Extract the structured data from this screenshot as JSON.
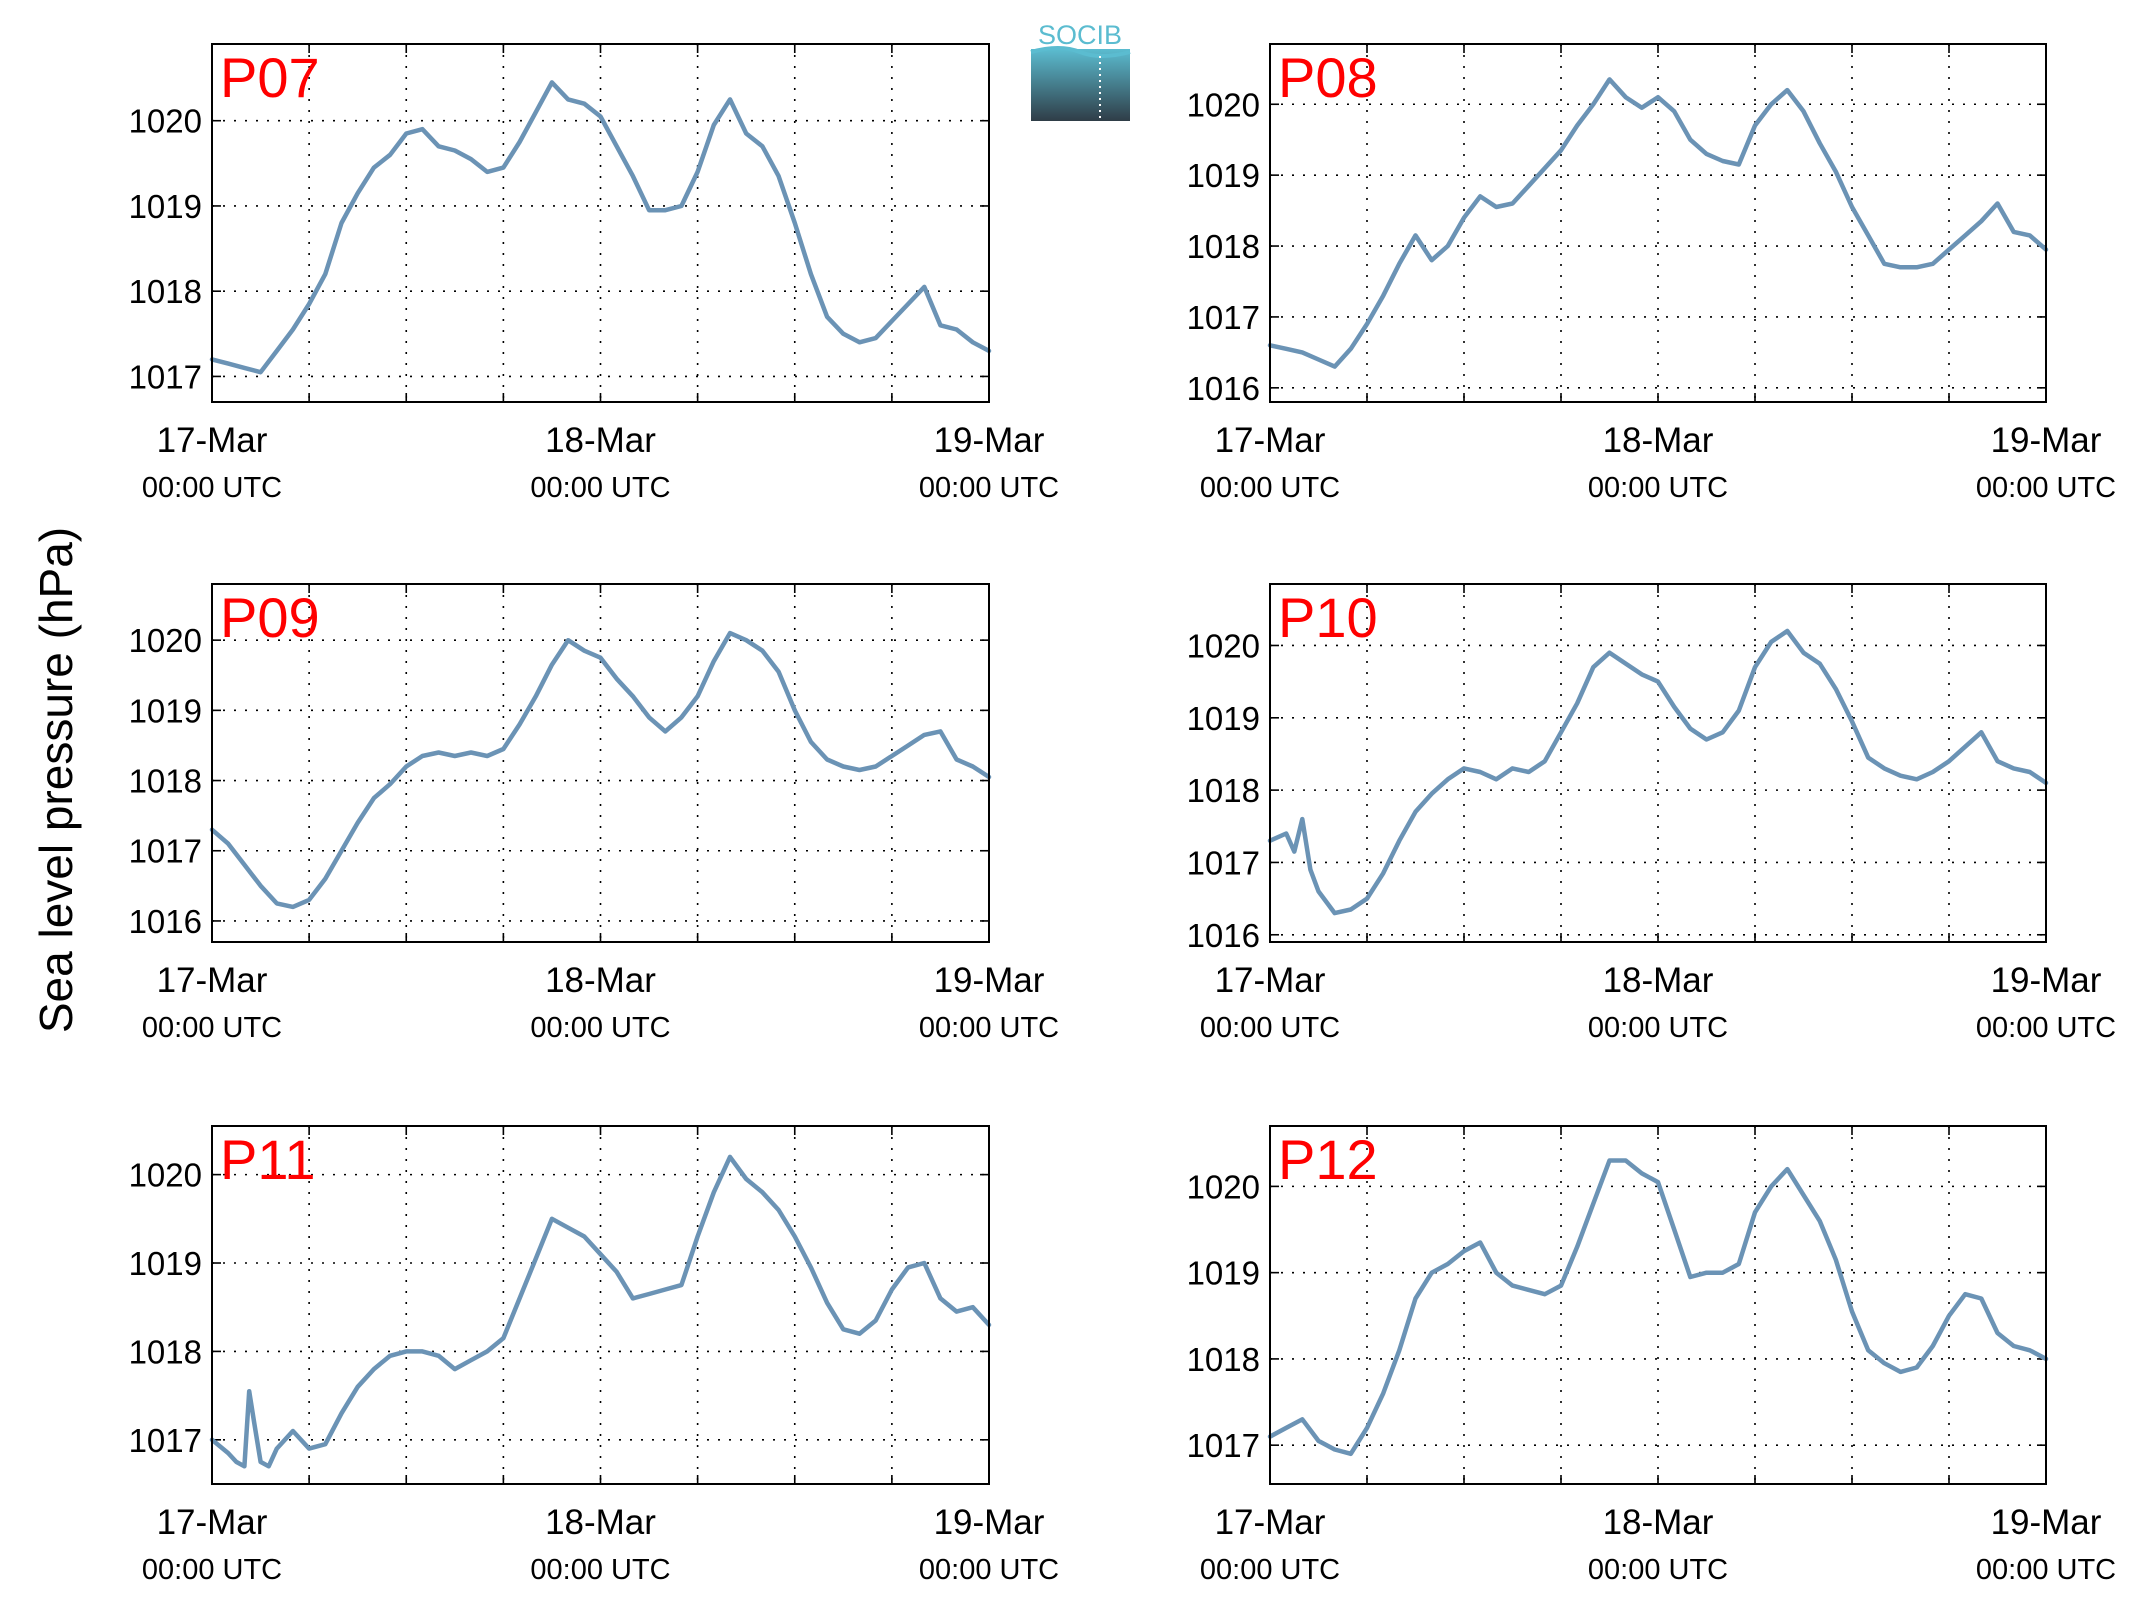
{
  "figure": {
    "ylabel": "Sea level pressure (hPa)",
    "logo_text": "SOCIB",
    "colors": {
      "line": "#6b93b5",
      "station_label": "#ff0000",
      "axis": "#000000",
      "grid": "#000000",
      "logo_top": "#5bbcd0",
      "logo_bottom": "#2f3d47"
    }
  },
  "chart_data": [
    {
      "type": "line",
      "station": "P07",
      "x_ticks": [
        {
          "day": "17-Mar",
          "time": "00:00 UTC",
          "hours": 0
        },
        {
          "day": "18-Mar",
          "time": "00:00 UTC",
          "hours": 24
        },
        {
          "day": "19-Mar",
          "time": "00:00 UTC",
          "hours": 48
        }
      ],
      "xlim": [
        0,
        48
      ],
      "ylim": [
        1016.7,
        1020.9
      ],
      "yticks": [
        1017,
        1018,
        1019,
        1020
      ],
      "grid": true,
      "series": [
        {
          "x": [
            0,
            1,
            2,
            3,
            4,
            5,
            6,
            7,
            8,
            9,
            10,
            11,
            12,
            13,
            14,
            15,
            16,
            17,
            18,
            19,
            20,
            21,
            22,
            23,
            24,
            25,
            26,
            27,
            28,
            29,
            30,
            31,
            32,
            33,
            34,
            35,
            36,
            37,
            38,
            39,
            40,
            41,
            42,
            43,
            44,
            45,
            46,
            47,
            48
          ],
          "y": [
            1017.2,
            1017.15,
            1017.1,
            1017.05,
            1017.3,
            1017.55,
            1017.85,
            1018.2,
            1018.8,
            1019.15,
            1019.45,
            1019.6,
            1019.85,
            1019.9,
            1019.7,
            1019.65,
            1019.55,
            1019.4,
            1019.45,
            1019.75,
            1020.1,
            1020.45,
            1020.25,
            1020.2,
            1020.05,
            1019.7,
            1019.35,
            1018.95,
            1018.95,
            1019.0,
            1019.4,
            1019.95,
            1020.25,
            1019.85,
            1019.7,
            1019.35,
            1018.8,
            1018.2,
            1017.7,
            1017.5,
            1017.4,
            1017.45,
            1017.65,
            1017.85,
            1018.05,
            1017.6,
            1017.55,
            1017.4,
            1017.3
          ]
        }
      ]
    },
    {
      "type": "line",
      "station": "P08",
      "x_ticks": [
        {
          "day": "17-Mar",
          "time": "00:00 UTC",
          "hours": 0
        },
        {
          "day": "18-Mar",
          "time": "00:00 UTC",
          "hours": 24
        },
        {
          "day": "19-Mar",
          "time": "00:00 UTC",
          "hours": 48
        }
      ],
      "xlim": [
        0,
        48
      ],
      "ylim": [
        1015.8,
        1020.85
      ],
      "yticks": [
        1016,
        1017,
        1018,
        1019,
        1020
      ],
      "grid": true,
      "series": [
        {
          "x": [
            0,
            1,
            2,
            3,
            4,
            5,
            6,
            7,
            8,
            9,
            10,
            11,
            12,
            13,
            14,
            15,
            16,
            17,
            18,
            19,
            20,
            21,
            22,
            23,
            24,
            25,
            26,
            27,
            28,
            29,
            30,
            31,
            32,
            33,
            34,
            35,
            36,
            37,
            38,
            39,
            40,
            41,
            42,
            43,
            44,
            45,
            46,
            47,
            48
          ],
          "y": [
            1016.6,
            1016.55,
            1016.5,
            1016.4,
            1016.3,
            1016.55,
            1016.9,
            1017.3,
            1017.75,
            1018.15,
            1017.8,
            1018.0,
            1018.4,
            1018.7,
            1018.55,
            1018.6,
            1018.85,
            1019.1,
            1019.35,
            1019.7,
            1020.0,
            1020.35,
            1020.1,
            1019.95,
            1020.1,
            1019.9,
            1019.5,
            1019.3,
            1019.2,
            1019.15,
            1019.7,
            1020.0,
            1020.2,
            1019.9,
            1019.45,
            1019.05,
            1018.55,
            1018.15,
            1017.75,
            1017.7,
            1017.7,
            1017.75,
            1017.95,
            1018.15,
            1018.35,
            1018.6,
            1018.2,
            1018.15,
            1017.95
          ]
        }
      ]
    },
    {
      "type": "line",
      "station": "P09",
      "x_ticks": [
        {
          "day": "17-Mar",
          "time": "00:00 UTC",
          "hours": 0
        },
        {
          "day": "18-Mar",
          "time": "00:00 UTC",
          "hours": 24
        },
        {
          "day": "19-Mar",
          "time": "00:00 UTC",
          "hours": 48
        }
      ],
      "xlim": [
        0,
        48
      ],
      "ylim": [
        1015.7,
        1020.8
      ],
      "yticks": [
        1016,
        1017,
        1018,
        1019,
        1020
      ],
      "grid": true,
      "series": [
        {
          "x": [
            0,
            1,
            2,
            3,
            4,
            5,
            6,
            7,
            8,
            9,
            10,
            11,
            12,
            13,
            14,
            15,
            16,
            17,
            18,
            19,
            20,
            21,
            22,
            23,
            24,
            25,
            26,
            27,
            28,
            29,
            30,
            31,
            32,
            33,
            34,
            35,
            36,
            37,
            38,
            39,
            40,
            41,
            42,
            43,
            44,
            45,
            46,
            47,
            48
          ],
          "y": [
            1017.3,
            1017.1,
            1016.8,
            1016.5,
            1016.25,
            1016.2,
            1016.3,
            1016.6,
            1017.0,
            1017.4,
            1017.75,
            1017.95,
            1018.2,
            1018.35,
            1018.4,
            1018.35,
            1018.4,
            1018.35,
            1018.45,
            1018.8,
            1019.2,
            1019.65,
            1020.0,
            1019.85,
            1019.75,
            1019.45,
            1019.2,
            1018.9,
            1018.7,
            1018.9,
            1019.2,
            1019.7,
            1020.1,
            1020.0,
            1019.85,
            1019.55,
            1019.0,
            1018.55,
            1018.3,
            1018.2,
            1018.15,
            1018.2,
            1018.35,
            1018.5,
            1018.65,
            1018.7,
            1018.3,
            1018.2,
            1018.05
          ]
        }
      ]
    },
    {
      "type": "line",
      "station": "P10",
      "x_ticks": [
        {
          "day": "17-Mar",
          "time": "00:00 UTC",
          "hours": 0
        },
        {
          "day": "18-Mar",
          "time": "00:00 UTC",
          "hours": 24
        },
        {
          "day": "19-Mar",
          "time": "00:00 UTC",
          "hours": 48
        }
      ],
      "xlim": [
        0,
        48
      ],
      "ylim": [
        1015.9,
        1020.85
      ],
      "yticks": [
        1016,
        1017,
        1018,
        1019,
        1020
      ],
      "grid": true,
      "series": [
        {
          "x": [
            0,
            1,
            1.5,
            2,
            2.5,
            3,
            4,
            5,
            6,
            7,
            8,
            9,
            10,
            11,
            12,
            13,
            14,
            15,
            16,
            17,
            18,
            19,
            20,
            21,
            22,
            23,
            24,
            25,
            26,
            27,
            28,
            29,
            30,
            31,
            32,
            33,
            34,
            35,
            36,
            37,
            38,
            39,
            40,
            41,
            42,
            43,
            44,
            45,
            46,
            47,
            48
          ],
          "y": [
            1017.3,
            1017.4,
            1017.15,
            1017.6,
            1016.9,
            1016.6,
            1016.3,
            1016.35,
            1016.5,
            1016.85,
            1017.3,
            1017.7,
            1017.95,
            1018.15,
            1018.3,
            1018.25,
            1018.15,
            1018.3,
            1018.25,
            1018.4,
            1018.8,
            1019.2,
            1019.7,
            1019.9,
            1019.75,
            1019.6,
            1019.5,
            1019.15,
            1018.85,
            1018.7,
            1018.8,
            1019.1,
            1019.7,
            1020.05,
            1020.2,
            1019.9,
            1019.75,
            1019.4,
            1018.95,
            1018.45,
            1018.3,
            1018.2,
            1018.15,
            1018.25,
            1018.4,
            1018.6,
            1018.8,
            1018.4,
            1018.3,
            1018.25,
            1018.1
          ]
        }
      ]
    },
    {
      "type": "line",
      "station": "P11",
      "x_ticks": [
        {
          "day": "17-Mar",
          "time": "00:00 UTC",
          "hours": 0
        },
        {
          "day": "18-Mar",
          "time": "00:00 UTC",
          "hours": 24
        },
        {
          "day": "19-Mar",
          "time": "00:00 UTC",
          "hours": 48
        }
      ],
      "xlim": [
        0,
        48
      ],
      "ylim": [
        1016.5,
        1020.55
      ],
      "yticks": [
        1017,
        1018,
        1019,
        1020
      ],
      "grid": true,
      "series": [
        {
          "x": [
            0,
            1,
            1.5,
            2,
            2.3,
            2.6,
            3,
            3.5,
            4,
            5,
            6,
            7,
            8,
            9,
            10,
            11,
            12,
            13,
            14,
            15,
            16,
            17,
            18,
            19,
            20,
            21,
            22,
            23,
            24,
            25,
            26,
            27,
            28,
            29,
            30,
            31,
            32,
            33,
            34,
            35,
            36,
            37,
            38,
            39,
            40,
            41,
            42,
            43,
            44,
            45,
            46,
            47,
            48
          ],
          "y": [
            1017.0,
            1016.85,
            1016.75,
            1016.7,
            1017.55,
            1017.2,
            1016.75,
            1016.7,
            1016.9,
            1017.1,
            1016.9,
            1016.95,
            1017.3,
            1017.6,
            1017.8,
            1017.95,
            1018.0,
            1018.0,
            1017.95,
            1017.8,
            1017.9,
            1018.0,
            1018.15,
            1018.6,
            1019.05,
            1019.5,
            1019.4,
            1019.3,
            1019.1,
            1018.9,
            1018.6,
            1018.65,
            1018.7,
            1018.75,
            1019.3,
            1019.8,
            1020.2,
            1019.95,
            1019.8,
            1019.6,
            1019.3,
            1018.95,
            1018.55,
            1018.25,
            1018.2,
            1018.35,
            1018.7,
            1018.95,
            1019.0,
            1018.6,
            1018.45,
            1018.5,
            1018.3
          ]
        }
      ]
    },
    {
      "type": "line",
      "station": "P12",
      "x_ticks": [
        {
          "day": "17-Mar",
          "time": "00:00 UTC",
          "hours": 0
        },
        {
          "day": "18-Mar",
          "time": "00:00 UTC",
          "hours": 24
        },
        {
          "day": "19-Mar",
          "time": "00:00 UTC",
          "hours": 48
        }
      ],
      "xlim": [
        0,
        48
      ],
      "ylim": [
        1016.55,
        1020.7
      ],
      "yticks": [
        1017,
        1018,
        1019,
        1020
      ],
      "grid": true,
      "series": [
        {
          "x": [
            0,
            1,
            2,
            3,
            4,
            5,
            6,
            7,
            8,
            9,
            10,
            11,
            12,
            13,
            14,
            15,
            16,
            17,
            18,
            19,
            20,
            21,
            22,
            23,
            24,
            25,
            26,
            27,
            28,
            29,
            30,
            31,
            32,
            33,
            34,
            35,
            36,
            37,
            38,
            39,
            40,
            41,
            42,
            43,
            44,
            45,
            46,
            47,
            48
          ],
          "y": [
            1017.1,
            1017.2,
            1017.3,
            1017.05,
            1016.95,
            1016.9,
            1017.2,
            1017.6,
            1018.1,
            1018.7,
            1019.0,
            1019.1,
            1019.25,
            1019.35,
            1019.0,
            1018.85,
            1018.8,
            1018.75,
            1018.85,
            1019.3,
            1019.8,
            1020.3,
            1020.3,
            1020.15,
            1020.05,
            1019.5,
            1018.95,
            1019.0,
            1019.0,
            1019.1,
            1019.7,
            1020.0,
            1020.2,
            1019.9,
            1019.6,
            1019.15,
            1018.55,
            1018.1,
            1017.95,
            1017.85,
            1017.9,
            1018.15,
            1018.5,
            1018.75,
            1018.7,
            1018.3,
            1018.15,
            1018.1,
            1018.0
          ]
        }
      ]
    }
  ]
}
